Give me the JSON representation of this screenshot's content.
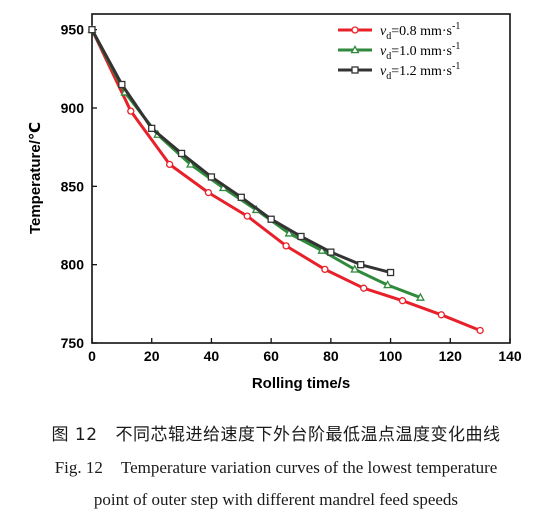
{
  "chart_data": {
    "type": "line",
    "xlabel": "Rolling time/s",
    "ylabel": "Temperature/℃",
    "xlim": [
      0,
      140
    ],
    "ylim": [
      750,
      960
    ],
    "xticks": [
      0,
      20,
      40,
      60,
      80,
      100,
      120,
      140
    ],
    "yticks": [
      750,
      800,
      850,
      900,
      950
    ],
    "grid": false,
    "legend_position": "top-right",
    "series": [
      {
        "name": "vd=0.8 mm·s-1",
        "color": "#e8202a",
        "marker": "circle",
        "x": [
          0,
          13,
          26,
          39,
          52,
          65,
          78,
          91,
          104,
          117,
          130
        ],
        "y": [
          950,
          898,
          864,
          846,
          831,
          812,
          797,
          785,
          777,
          768,
          758
        ]
      },
      {
        "name": "vd=1.0 mm·s-1",
        "color": "#2f8a3b",
        "marker": "triangle",
        "x": [
          0,
          11,
          22,
          33,
          44,
          55,
          66,
          77,
          88,
          99,
          110
        ],
        "y": [
          950,
          910,
          883,
          864,
          849,
          835,
          820,
          809,
          797,
          787,
          779
        ]
      },
      {
        "name": "vd=1.2 mm·s-1",
        "color": "#333333",
        "marker": "square",
        "x": [
          0,
          10,
          20,
          30,
          40,
          50,
          60,
          70,
          80,
          90,
          100
        ],
        "y": [
          950,
          915,
          887,
          871,
          856,
          843,
          829,
          818,
          808,
          800,
          795
        ]
      }
    ]
  },
  "caption": {
    "cn_label": "图 12",
    "cn_text": "不同芯辊进给速度下外台阶最低温点温度变化曲线",
    "en_label": "Fig. 12",
    "en_text_line1": "Temperature variation curves of the lowest temperature",
    "en_text_line2": "point of outer step with different mandrel feed speeds"
  }
}
